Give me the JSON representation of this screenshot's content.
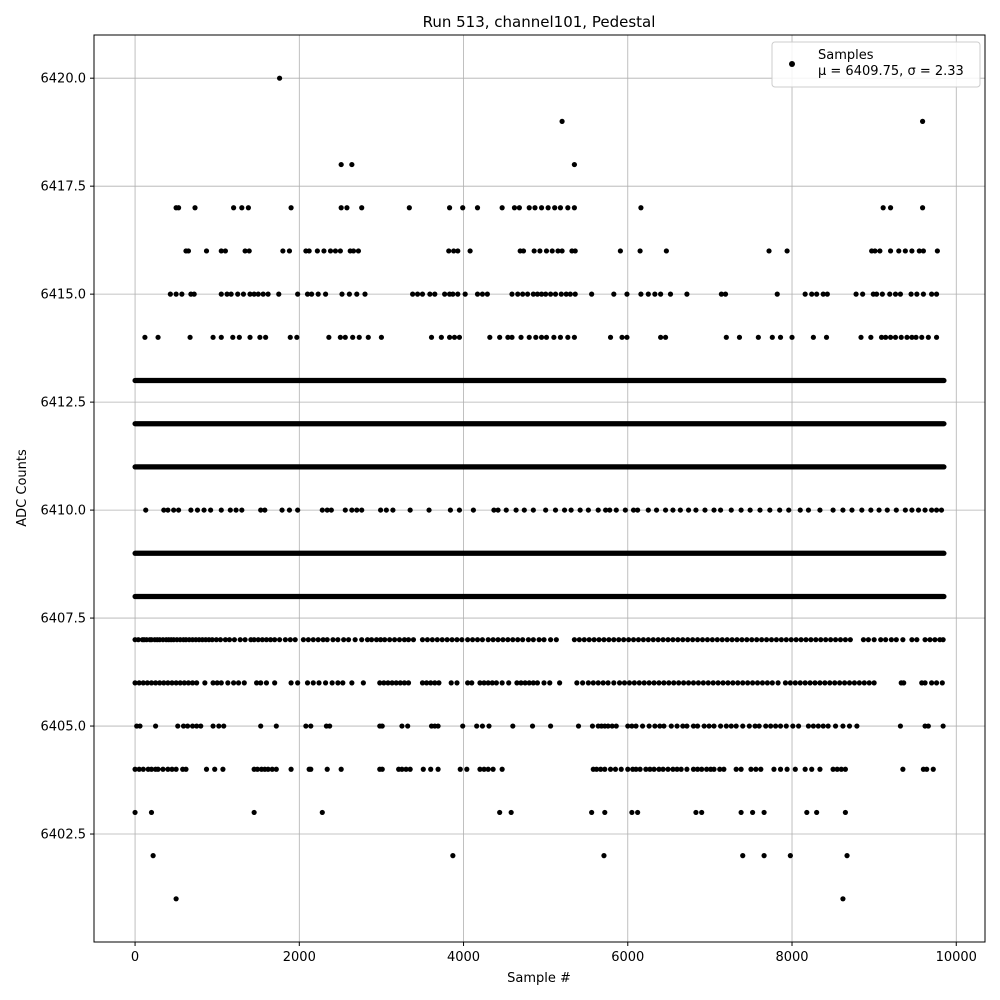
{
  "chart_data": {
    "type": "scatter",
    "title": "Run 513, channel101, Pedestal",
    "xlabel": "Sample #",
    "ylabel": "ADC Counts",
    "xlim": [
      -500,
      10350
    ],
    "ylim": [
      6400.0,
      6421.0
    ],
    "xticks": [
      0,
      2000,
      4000,
      6000,
      8000,
      10000
    ],
    "yticks": [
      6402.5,
      6405.0,
      6407.5,
      6410.0,
      6412.5,
      6415.0,
      6417.5,
      6420.0
    ],
    "xtick_labels": [
      "0",
      "2000",
      "4000",
      "6000",
      "8000",
      "10000"
    ],
    "ytick_labels": [
      "6402.5",
      "6405.0",
      "6407.5",
      "6410.0",
      "6412.5",
      "6415.0",
      "6417.5",
      "6420.0"
    ],
    "grid": true,
    "legend": {
      "position": "top-right",
      "entries": [
        {
          "label": "Samples",
          "sublabel": "μ = 6409.75, σ = 2.33"
        }
      ]
    },
    "series": [
      {
        "name": "Samples",
        "color": "#000000",
        "level_ranges": {
          "6413": [
            [
              0,
              9850
            ]
          ],
          "6412": [
            [
              0,
              9850
            ]
          ],
          "6411": [
            [
              0,
              9850
            ]
          ],
          "6409": [
            [
              0,
              9850
            ]
          ],
          "6408": [
            [
              0,
              9850
            ]
          ]
        },
        "levels": [
          {
            "y": 6420,
            "x": [
              1760
            ]
          },
          {
            "y": 6419,
            "x": [
              5200,
              9590
            ]
          },
          {
            "y": 6418,
            "x": [
              2510,
              2640,
              5350
            ]
          },
          {
            "y": 6417,
            "x": [
              500,
              530,
              730,
              1200,
              1300,
              1380,
              1900,
              2510,
              2580,
              2760,
              3340,
              3830,
              3990,
              4170,
              4470,
              4620,
              4680,
              4800,
              4870,
              4950,
              5030,
              5110,
              5180,
              5270,
              5350,
              6160,
              9110,
              9200,
              9590
            ]
          },
          {
            "y": 6416,
            "x": [
              620,
              650,
              870,
              1050,
              1100,
              1340,
              1390,
              1800,
              1880,
              2080,
              2120,
              2220,
              2300,
              2380,
              2440,
              2500,
              2620,
              2660,
              2720,
              3820,
              3880,
              3930,
              4080,
              4690,
              4730,
              4860,
              4930,
              5010,
              5080,
              5150,
              5200,
              5320,
              5360,
              5910,
              6150,
              6470,
              7720,
              7940,
              8970,
              9010,
              9070,
              9200,
              9300,
              9380,
              9460,
              9550,
              9600,
              9770
            ]
          },
          {
            "y": 6415,
            "x": [
              430,
              500,
              570,
              680,
              720,
              1050,
              1120,
              1170,
              1250,
              1320,
              1400,
              1450,
              1500,
              1560,
              1620,
              1750,
              1980,
              2100,
              2150,
              2230,
              2320,
              2520,
              2610,
              2700,
              2800,
              3380,
              3440,
              3500,
              3590,
              3650,
              3770,
              3830,
              3870,
              3930,
              4020,
              4170,
              4230,
              4290,
              4590,
              4660,
              4720,
              4780,
              4850,
              4900,
              4950,
              5000,
              5060,
              5120,
              5190,
              5250,
              5300,
              5360,
              5560,
              5830,
              5990,
              6160,
              6250,
              6330,
              6400,
              6520,
              6720,
              7140,
              7190,
              7820,
              8160,
              8240,
              8300,
              8380,
              8430,
              8780,
              8860,
              8990,
              9030,
              9100,
              9190,
              9260,
              9320,
              9450,
              9520,
              9600,
              9700,
              9760
            ]
          },
          {
            "y": 6414,
            "x": [
              120,
              280,
              670,
              950,
              1050,
              1190,
              1270,
              1400,
              1520,
              1590,
              1890,
              1970,
              2360,
              2500,
              2560,
              2650,
              2730,
              2840,
              3000,
              3610,
              3730,
              3830,
              3890,
              3950,
              4320,
              4440,
              4540,
              4590,
              4700,
              4800,
              4880,
              4950,
              5010,
              5100,
              5180,
              5270,
              5350,
              5790,
              5930,
              5990,
              6400,
              6460,
              7200,
              7360,
              7590,
              7760,
              7860,
              8000,
              8260,
              8420,
              8840,
              8960,
              9090,
              9140,
              9200,
              9260,
              9330,
              9400,
              9460,
              9510,
              9580,
              9660,
              9760
            ]
          },
          {
            "y": 6410,
            "x": [
              130,
              350,
              400,
              470,
              530,
              680,
              760,
              840,
              920,
              1050,
              1160,
              1230,
              1300,
              1530,
              1580,
              1790,
              1880,
              1980,
              2280,
              2340,
              2390,
              2560,
              2640,
              2700,
              2760,
              2990,
              3060,
              3140,
              3350,
              3580,
              3840,
              3950,
              4120,
              4370,
              4420,
              4520,
              4640,
              4740,
              4850,
              5000,
              5120,
              5230,
              5310,
              5420,
              5520,
              5640,
              5730,
              5780,
              5860,
              5970,
              6070,
              6120,
              6250,
              6350,
              6460,
              6550,
              6640,
              6740,
              6830,
              6940,
              7050,
              7130,
              7260,
              7380,
              7490,
              7610,
              7730,
              7850,
              7960,
              8100,
              8200,
              8340,
              8500,
              8620,
              8730,
              8850,
              8960,
              9060,
              9160,
              9270,
              9380,
              9460,
              9540,
              9620,
              9700,
              9760,
              9820
            ]
          },
          {
            "y": 6407,
            "x": [
              0,
              40,
              90,
              110,
              140,
              180,
              200,
              240,
              270,
              300,
              340,
              380,
              410,
              440,
              470,
              510,
              550,
              590,
              620,
              660,
              700,
              740,
              780,
              820,
              860,
              900,
              940,
              990,
              1040,
              1100,
              1150,
              1210,
              1280,
              1340,
              1410,
              1450,
              1500,
              1550,
              1600,
              1650,
              1700,
              1760,
              1830,
              1890,
              1950,
              2050,
              2110,
              2170,
              2230,
              2290,
              2340,
              2410,
              2470,
              2540,
              2600,
              2680,
              2760,
              2830,
              2880,
              2940,
              2990,
              3040,
              3100,
              3160,
              3220,
              3280,
              3330,
              3390,
              3500,
              3560,
              3620,
              3680,
              3740,
              3800,
              3860,
              3920,
              3980,
              4050,
              4110,
              4170,
              4230,
              4300,
              4360,
              4420,
              4480,
              4540,
              4600,
              4660,
              4720,
              4790,
              4850,
              4920,
              4980,
              5060,
              5130,
              5350,
              5410,
              5470,
              5530,
              5590,
              5650,
              5710,
              5770,
              5830,
              5890,
              5950,
              6010,
              6070,
              6130,
              6190,
              6250,
              6310,
              6370,
              6430,
              6490,
              6550,
              6610,
              6670,
              6730,
              6790,
              6850,
              6910,
              6970,
              7030,
              7090,
              7150,
              7210,
              7270,
              7330,
              7390,
              7450,
              7510,
              7570,
              7630,
              7690,
              7750,
              7810,
              7870,
              7930,
              7990,
              8050,
              8110,
              8170,
              8230,
              8290,
              8350,
              8410,
              8470,
              8530,
              8590,
              8650,
              8710,
              8870,
              8930,
              9000,
              9080,
              9140,
              9210,
              9270,
              9350,
              9460,
              9520,
              9620,
              9680,
              9740,
              9800,
              9840
            ]
          },
          {
            "y": 6406,
            "x": [
              0,
              50,
              100,
              150,
              200,
              250,
              300,
              350,
              400,
              450,
              500,
              550,
              600,
              650,
              700,
              750,
              850,
              950,
              1000,
              1050,
              1130,
              1200,
              1260,
              1330,
              1480,
              1530,
              1600,
              1700,
              1900,
              1980,
              2100,
              2170,
              2240,
              2320,
              2400,
              2470,
              2530,
              2640,
              2780,
              2980,
              3030,
              3080,
              3130,
              3180,
              3230,
              3280,
              3330,
              3500,
              3550,
              3600,
              3650,
              3700,
              3850,
              3920,
              4050,
              4100,
              4200,
              4250,
              4300,
              4350,
              4400,
              4470,
              4550,
              4650,
              4700,
              4750,
              4800,
              4850,
              4900,
              4980,
              5050,
              5170,
              5380,
              5450,
              5520,
              5580,
              5640,
              5700,
              5760,
              5830,
              5900,
              5960,
              6020,
              6080,
              6140,
              6200,
              6260,
              6320,
              6380,
              6440,
              6500,
              6560,
              6620,
              6680,
              6740,
              6800,
              6860,
              6920,
              6980,
              7040,
              7100,
              7160,
              7220,
              7280,
              7340,
              7400,
              7460,
              7520,
              7580,
              7640,
              7700,
              7760,
              7830,
              7920,
              7980,
              8040,
              8100,
              8160,
              8220,
              8280,
              8340,
              8400,
              8460,
              8520,
              8580,
              8640,
              8700,
              8760,
              8820,
              8880,
              8940,
              9000,
              9330,
              9360,
              9580,
              9620,
              9700,
              9760,
              9830
            ]
          },
          {
            "y": 6405,
            "x": [
              20,
              60,
              250,
              520,
              590,
              640,
              700,
              750,
              800,
              950,
              1020,
              1080,
              1530,
              1720,
              2080,
              2140,
              2330,
              2370,
              2980,
              3010,
              3250,
              3320,
              3610,
              3650,
              3690,
              3990,
              4160,
              4230,
              4310,
              4600,
              4840,
              5060,
              5400,
              5570,
              5640,
              5680,
              5720,
              5760,
              5810,
              5860,
              6000,
              6050,
              6100,
              6180,
              6260,
              6330,
              6390,
              6440,
              6530,
              6600,
              6670,
              6720,
              6800,
              6850,
              6930,
              6990,
              7050,
              7130,
              7200,
              7260,
              7320,
              7400,
              7480,
              7550,
              7600,
              7680,
              7740,
              7800,
              7860,
              7930,
              8010,
              8080,
              8200,
              8260,
              8320,
              8380,
              8440,
              8530,
              8620,
              8700,
              8790,
              9320,
              9620,
              9660,
              9840
            ]
          },
          {
            "y": 6404,
            "x": [
              0,
              50,
              100,
              160,
              200,
              250,
              280,
              340,
              400,
              450,
              500,
              580,
              620,
              870,
              970,
              1070,
              1450,
              1490,
              1540,
              1580,
              1620,
              1670,
              1720,
              1900,
              2120,
              2140,
              2340,
              2510,
              2980,
              3010,
              3210,
              3250,
              3300,
              3350,
              3510,
              3600,
              3690,
              3960,
              4040,
              4200,
              4250,
              4300,
              4360,
              4470,
              5580,
              5620,
              5670,
              5720,
              5790,
              5850,
              5920,
              6000,
              6060,
              6100,
              6150,
              6220,
              6270,
              6320,
              6380,
              6430,
              6490,
              6550,
              6600,
              6650,
              6720,
              6800,
              6850,
              6900,
              6960,
              7010,
              7050,
              7120,
              7170,
              7320,
              7380,
              7500,
              7560,
              7620,
              7780,
              7860,
              7940,
              8040,
              8160,
              8240,
              8340,
              8500,
              8550,
              8600,
              8650,
              9350,
              9600,
              9640,
              9720
            ]
          },
          {
            "y": 6403,
            "x": [
              0,
              200,
              1450,
              2280,
              4440,
              4580,
              5560,
              5720,
              6050,
              6120,
              6830,
              6900,
              7380,
              7520,
              7660,
              8180,
              8300,
              8650
            ]
          },
          {
            "y": 6402,
            "x": [
              220,
              3870,
              5710,
              7400,
              7660,
              7980,
              8670
            ]
          },
          {
            "y": 6401,
            "x": [
              500,
              8620
            ]
          }
        ]
      }
    ]
  }
}
